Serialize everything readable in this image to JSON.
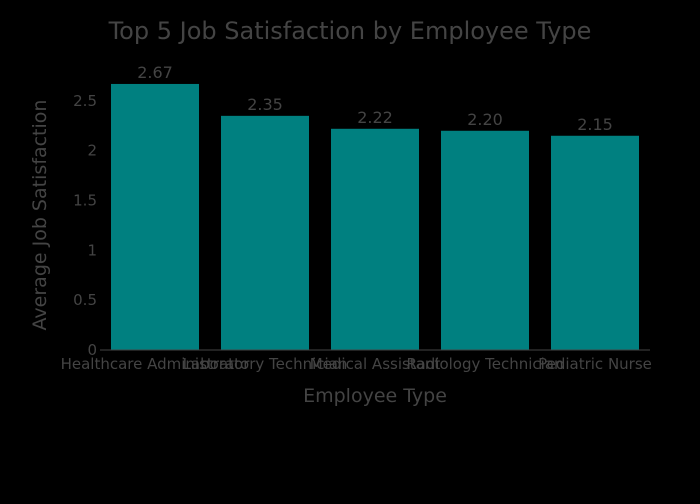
{
  "colors": {
    "background": "#000000",
    "bar": "#008080",
    "text": "#444444",
    "axis_line": "#444444"
  },
  "chart_data": {
    "type": "bar",
    "title": "Top 5 Job Satisfaction by Employee Type",
    "xlabel": "Employee Type",
    "ylabel": "Average Job Satisfaction",
    "categories": [
      "Healthcare Administrator",
      "Laboratory Technician",
      "Medical Assistant",
      "Radiology Technician",
      "Pediatric Nurse"
    ],
    "values": [
      2.67,
      2.35,
      2.22,
      2.2,
      2.15
    ],
    "data_labels": [
      "2.67",
      "2.35",
      "2.22",
      "2.20",
      "2.15"
    ],
    "ylim": [
      0,
      2.81
    ],
    "yticks": [
      0,
      0.5,
      1,
      1.5,
      2,
      2.5
    ],
    "ytick_labels": [
      "0",
      "0.5",
      "1",
      "1.5",
      "2",
      "2.5"
    ],
    "grid": false,
    "legend": "none"
  }
}
